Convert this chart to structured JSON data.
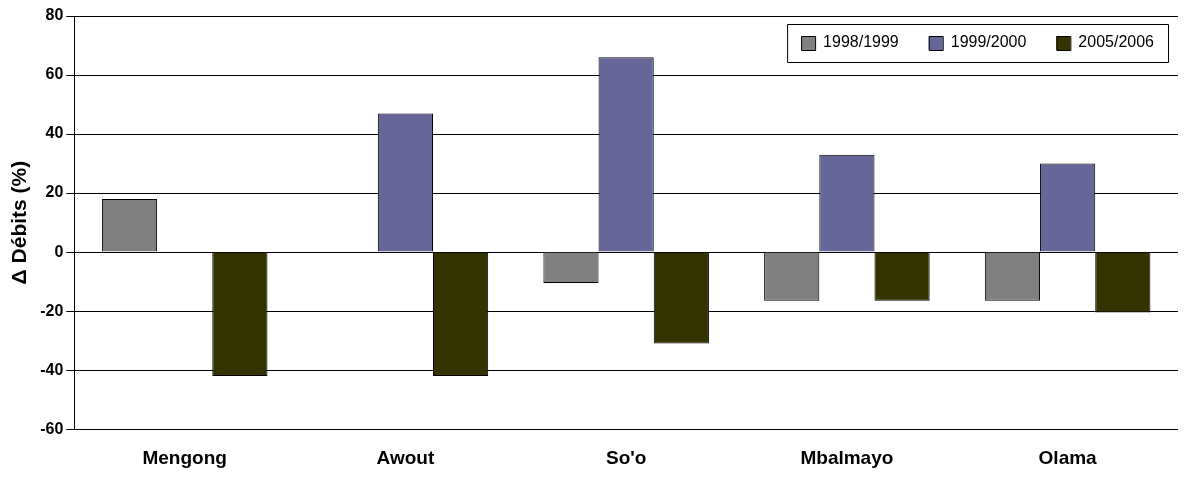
{
  "chart_data": {
    "type": "bar",
    "ylabel": "Δ Débits (%)",
    "categories": [
      "Mengong",
      "Awout",
      "So'o",
      "Mbalmayo",
      "Olama"
    ],
    "series": [
      {
        "name": "1998/1999",
        "color": "#808080",
        "values": [
          18,
          null,
          -10.5,
          -16.5,
          -16.5
        ]
      },
      {
        "name": "1999/2000",
        "color": "#666699",
        "values": [
          null,
          47,
          66,
          33,
          30
        ]
      },
      {
        "name": "2005/2006",
        "color": "#333300",
        "values": [
          -42,
          -42,
          -31,
          -16.5,
          -20.5
        ]
      }
    ],
    "ylim": [
      -60,
      80
    ],
    "yticks": [
      -60,
      -40,
      -20,
      0,
      20,
      40,
      60,
      80
    ],
    "grid": "y",
    "legend": "top right"
  }
}
